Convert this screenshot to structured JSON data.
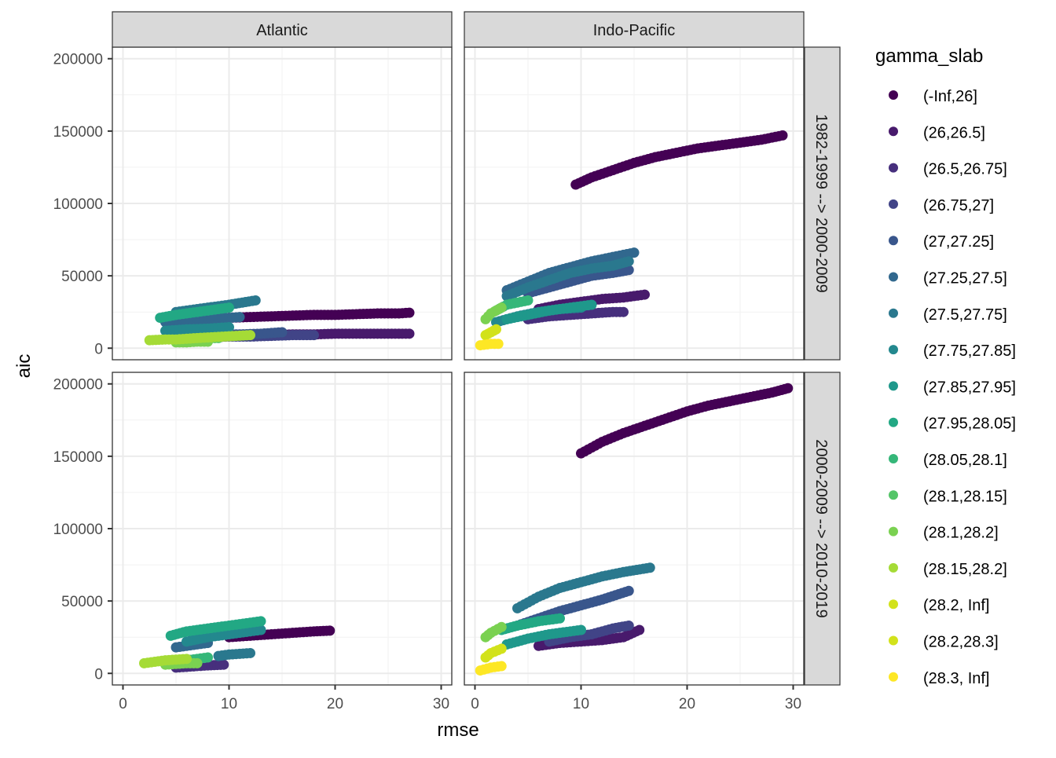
{
  "chart_data": {
    "type": "scatter",
    "facet_columns": [
      "Atlantic",
      "Indo-Pacific"
    ],
    "facet_rows": [
      "1982-1999 --> 2000-2009",
      "2000-2009 --> 2010-2019"
    ],
    "xlabel": "rmse",
    "ylabel": "aic",
    "xlim": [
      -1,
      31
    ],
    "ylim": [
      -8000,
      208000
    ],
    "x_ticks": [
      0,
      10,
      20,
      30
    ],
    "y_ticks": [
      0,
      50000,
      100000,
      150000,
      200000
    ],
    "y_tick_labels": [
      "0",
      "50000",
      "100000",
      "150000",
      "200000"
    ],
    "grid": true,
    "legend": {
      "title": "gamma_slab",
      "position": "right",
      "entries": [
        {
          "label": "(-Inf,26]",
          "color": "#440154"
        },
        {
          "label": "(26,26.5]",
          "color": "#481A6C"
        },
        {
          "label": "(26.5,26.75]",
          "color": "#472F7D"
        },
        {
          "label": "(26.75,27]",
          "color": "#414487"
        },
        {
          "label": "(27,27.25]",
          "color": "#39568C"
        },
        {
          "label": "(27.25,27.5]",
          "color": "#31688E"
        },
        {
          "label": "(27.5,27.75]",
          "color": "#2A788E"
        },
        {
          "label": "(27.75,27.85]",
          "color": "#23888E"
        },
        {
          "label": "(27.85,27.95]",
          "color": "#1F988B"
        },
        {
          "label": "(27.95,28.05]",
          "color": "#22A884"
        },
        {
          "label": "(28.05,28.1]",
          "color": "#35B779"
        },
        {
          "label": "(28.1,28.15]",
          "color": "#54C568"
        },
        {
          "label": "(28.1,28.2]",
          "color": "#7AD151"
        },
        {
          "label": "(28.15,28.2]",
          "color": "#A5DB36"
        },
        {
          "label": "(28.2, Inf]",
          "color": "#D2E21B"
        },
        {
          "label": "(28.2,28.3]",
          "color": "#D2E21B"
        },
        {
          "label": "(28.3, Inf]",
          "color": "#FDE725"
        }
      ]
    },
    "panels": [
      {
        "column": "Atlantic",
        "row": "1982-1999 --> 2000-2009",
        "series": [
          {
            "group": 0,
            "x": [
              10,
              12,
              14,
              16,
              18,
              20,
              22,
              24,
              26,
              27
            ],
            "y": [
              21000,
              21500,
              22000,
              22500,
              23000,
              23000,
              23500,
              24000,
              24000,
              24500
            ]
          },
          {
            "group": 1,
            "x": [
              12,
              14,
              16,
              18,
              20,
              22,
              24,
              25,
              26,
              27
            ],
            "y": [
              9000,
              9000,
              9500,
              9500,
              10000,
              10000,
              10000,
              10000,
              10000,
              10000
            ]
          },
          {
            "group": 3,
            "x": [
              6,
              8,
              10,
              12,
              14,
              16,
              18
            ],
            "y": [
              7000,
              7500,
              8000,
              8000,
              8500,
              9000,
              9000
            ]
          },
          {
            "group": 4,
            "x": [
              5,
              7,
              9,
              11,
              13,
              15
            ],
            "y": [
              9000,
              9000,
              9500,
              9500,
              10000,
              11000
            ]
          },
          {
            "group": 5,
            "x": [
              4,
              6,
              8,
              10,
              11
            ],
            "y": [
              18000,
              19000,
              20000,
              21000,
              21500
            ]
          },
          {
            "group": 6,
            "x": [
              5,
              7,
              9,
              10,
              12.5
            ],
            "y": [
              25000,
              27000,
              29000,
              30000,
              33000
            ]
          },
          {
            "group": 7,
            "x": [
              4,
              6,
              8,
              9,
              10
            ],
            "y": [
              12000,
              13000,
              13500,
              14000,
              14500
            ]
          },
          {
            "group": 9,
            "x": [
              3.5,
              5,
              7,
              9,
              10
            ],
            "y": [
              21000,
              23000,
              25000,
              27000,
              28000
            ]
          },
          {
            "group": 11,
            "x": [
              6,
              7,
              8,
              9
            ],
            "y": [
              6000,
              6500,
              7000,
              7000
            ]
          },
          {
            "group": 12,
            "x": [
              5,
              6,
              7,
              8
            ],
            "y": [
              4000,
              4000,
              4500,
              4500
            ]
          },
          {
            "group": 13,
            "x": [
              2.5,
              4,
              5,
              6,
              7,
              12
            ],
            "y": [
              5500,
              6000,
              6000,
              6500,
              7000,
              9000
            ]
          }
        ]
      },
      {
        "column": "Indo-Pacific",
        "row": "1982-1999 --> 2000-2009",
        "series": [
          {
            "group": 0,
            "x": [
              9.5,
              11,
              13,
              15,
              17,
              19,
              21,
              23,
              25,
              27,
              29
            ],
            "y": [
              113000,
              118000,
              123000,
              128000,
              132000,
              135000,
              138000,
              140000,
              142000,
              144000,
              147000
            ]
          },
          {
            "group": 1,
            "x": [
              6,
              8,
              10,
              12,
              14,
              16
            ],
            "y": [
              27000,
              30000,
              32000,
              34000,
              35000,
              37000
            ]
          },
          {
            "group": 2,
            "x": [
              5,
              7,
              9,
              11,
              13,
              14
            ],
            "y": [
              20000,
              22000,
              23000,
              24000,
              25000,
              25000
            ]
          },
          {
            "group": 4,
            "x": [
              5,
              7,
              9,
              11,
              13,
              14.5
            ],
            "y": [
              38000,
              42000,
              46000,
              50000,
              52000,
              54000
            ]
          },
          {
            "group": 5,
            "x": [
              3,
              5,
              7,
              9,
              11,
              13,
              15
            ],
            "y": [
              40000,
              46000,
              52000,
              56000,
              60000,
              63000,
              66000
            ]
          },
          {
            "group": 6,
            "x": [
              3,
              5,
              7,
              9,
              11,
              13,
              14.5
            ],
            "y": [
              36000,
              42000,
              47000,
              52000,
              55000,
              57000,
              60000
            ]
          },
          {
            "group": 7,
            "x": [
              2,
              4,
              6,
              8,
              10
            ],
            "y": [
              18000,
              22000,
              25000,
              27000,
              28000
            ]
          },
          {
            "group": 8,
            "x": [
              3,
              5,
              7,
              9,
              11
            ],
            "y": [
              20000,
              23000,
              26000,
              28000,
              30000
            ]
          },
          {
            "group": 10,
            "x": [
              2,
              3,
              5
            ],
            "y": [
              26000,
              30000,
              33000
            ]
          },
          {
            "group": 12,
            "x": [
              1,
              1.5,
              2.5
            ],
            "y": [
              20000,
              24000,
              28000
            ]
          },
          {
            "group": 15,
            "x": [
              1,
              1.5,
              2
            ],
            "y": [
              9000,
              11000,
              13000
            ]
          },
          {
            "group": 16,
            "x": [
              0.5,
              1.5,
              2.2
            ],
            "y": [
              2000,
              3000,
              3000
            ]
          }
        ]
      },
      {
        "column": "Atlantic",
        "row": "2000-2009 --> 2010-2019",
        "series": [
          {
            "group": 0,
            "x": [
              10,
              12,
              14,
              16,
              18,
              19.5
            ],
            "y": [
              25000,
              26000,
              27000,
              28000,
              29000,
              29500
            ]
          },
          {
            "group": 2,
            "x": [
              5,
              6,
              7,
              8,
              9.5
            ],
            "y": [
              4000,
              4500,
              5000,
              5500,
              6000
            ]
          },
          {
            "group": 5,
            "x": [
              5,
              6,
              7,
              8
            ],
            "y": [
              18000,
              19000,
              20000,
              21000
            ]
          },
          {
            "group": 6,
            "x": [
              9,
              10,
              11,
              12
            ],
            "y": [
              12000,
              13000,
              13500,
              14000
            ]
          },
          {
            "group": 7,
            "x": [
              6,
              8,
              10,
              12,
              13
            ],
            "y": [
              22000,
              25000,
              27000,
              29000,
              30000
            ]
          },
          {
            "group": 9,
            "x": [
              4.5,
              6,
              8,
              10,
              12,
              13
            ],
            "y": [
              26000,
              29000,
              31000,
              33000,
              35000,
              36000
            ]
          },
          {
            "group": 10,
            "x": [
              6,
              7,
              8
            ],
            "y": [
              9000,
              10000,
              11000
            ]
          },
          {
            "group": 12,
            "x": [
              4,
              5,
              6,
              7
            ],
            "y": [
              6000,
              6500,
              7000,
              7000
            ]
          },
          {
            "group": 13,
            "x": [
              2,
              3,
              4,
              5,
              6
            ],
            "y": [
              7000,
              8000,
              9000,
              9500,
              10000
            ]
          }
        ]
      },
      {
        "column": "Indo-Pacific",
        "row": "2000-2009 --> 2010-2019",
        "series": [
          {
            "group": 0,
            "x": [
              10,
              12,
              14,
              16,
              18,
              20,
              22,
              24,
              26,
              28,
              29.5
            ],
            "y": [
              152000,
              160000,
              166000,
              171000,
              176000,
              181000,
              185000,
              188000,
              191000,
              194000,
              197000
            ]
          },
          {
            "group": 1,
            "x": [
              6,
              8,
              10,
              12,
              14,
              15.5
            ],
            "y": [
              19000,
              21000,
              22000,
              23000,
              25000,
              30000
            ]
          },
          {
            "group": 3,
            "x": [
              7,
              9,
              11,
              13,
              14.5
            ],
            "y": [
              22000,
              25000,
              27000,
              31000,
              33000
            ]
          },
          {
            "group": 4,
            "x": [
              4,
              6,
              8,
              10,
              12,
              14.5
            ],
            "y": [
              33000,
              38000,
              43000,
              47000,
              51000,
              57000
            ]
          },
          {
            "group": 6,
            "x": [
              4,
              6,
              8,
              10,
              12,
              14,
              16.5
            ],
            "y": [
              45000,
              53000,
              59000,
              63000,
              67000,
              70000,
              73000
            ]
          },
          {
            "group": 8,
            "x": [
              3,
              5,
              7,
              9,
              10
            ],
            "y": [
              20000,
              24000,
              27000,
              29000,
              30000
            ]
          },
          {
            "group": 9,
            "x": [
              2.5,
              4,
              6,
              8
            ],
            "y": [
              30000,
              33000,
              36000,
              38000
            ]
          },
          {
            "group": 12,
            "x": [
              1,
              1.5,
              2.5
            ],
            "y": [
              25000,
              28000,
              32000
            ]
          },
          {
            "group": 15,
            "x": [
              1,
              1.5,
              2.5
            ],
            "y": [
              11000,
              14000,
              17000
            ]
          },
          {
            "group": 16,
            "x": [
              0.5,
              1.5,
              2.5
            ],
            "y": [
              2000,
              4000,
              5000
            ]
          }
        ]
      }
    ]
  }
}
